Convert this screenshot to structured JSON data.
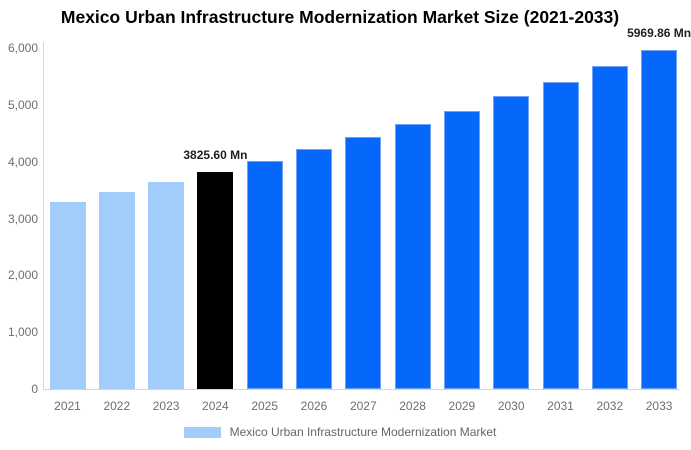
{
  "chart_data": {
    "type": "bar",
    "title": "Mexico Urban Infrastructure Modernization Market Size (2021-2033)",
    "xlabel": "",
    "ylabel": "",
    "unit": "Mn",
    "categories": [
      "2021",
      "2022",
      "2023",
      "2024",
      "2025",
      "2026",
      "2027",
      "2028",
      "2029",
      "2030",
      "2031",
      "2032",
      "2033"
    ],
    "values": [
      3298.22,
      3465.4,
      3641.04,
      3825.6,
      4019.52,
      4223.27,
      4437.35,
      4662.28,
      4898.61,
      5146.92,
      5407.82,
      5681.93,
      5969.86
    ],
    "bar_phases": [
      "historical",
      "historical",
      "historical",
      "base",
      "forecast",
      "forecast",
      "forecast",
      "forecast",
      "forecast",
      "forecast",
      "forecast",
      "forecast",
      "forecast"
    ],
    "phase_colors": {
      "historical": "#A2CCFA",
      "base": "#000000",
      "forecast": "#0568FB"
    },
    "ylim": [
      0,
      6000
    ],
    "ytick_values": [
      0,
      1000,
      2000,
      3000,
      4000,
      5000,
      6000
    ],
    "ytick_labels": [
      "0",
      "1,000",
      "2,000",
      "3,000",
      "4,000",
      "5,000",
      "6,000"
    ],
    "data_labels": [
      {
        "category": "2024",
        "text": "3825.60 Mn"
      },
      {
        "category": "2033",
        "text": "5969.86 Mn"
      }
    ],
    "grid": "off",
    "legend_position": "bottom",
    "legend": {
      "label": "Mexico Urban Infrastructure Modernization Market",
      "color": "#A2CCFA"
    }
  }
}
